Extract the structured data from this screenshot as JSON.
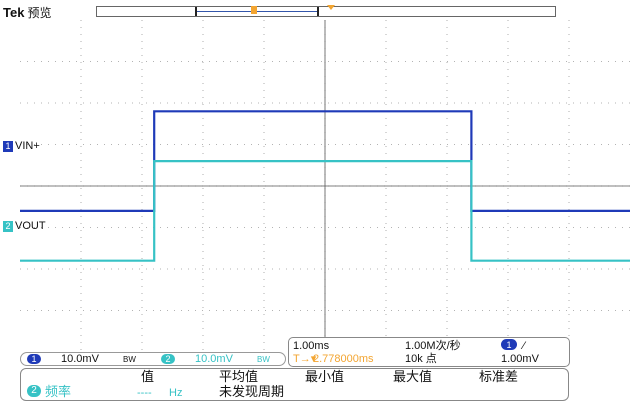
{
  "header": {
    "brand": "Tek",
    "mode": "预览"
  },
  "trigger_marker": "T",
  "channels": [
    {
      "number": "1",
      "name": "VIN+",
      "color": "#1f3ab8"
    },
    {
      "number": "2",
      "name": "VOUT",
      "color": "#36c2c5"
    }
  ],
  "readout": {
    "ch1_num": "1",
    "ch1_scale": "10.0mV",
    "ch1_bw": "BW",
    "ch2_num": "2",
    "ch2_scale": "10.0mV",
    "ch2_bw": "BW"
  },
  "timebase": {
    "scale": "1.00ms",
    "sample_rate": "1.00M次/秒",
    "trig_channel": "1",
    "trig_slope": "⁄",
    "position_icon": "T→▾",
    "position": "2.778000ms",
    "record_length": "10k 点",
    "trigger_level": "1.00mV"
  },
  "measurement": {
    "headers": [
      "值",
      "平均值",
      "最小值",
      "最大值",
      "标准差"
    ],
    "channel": "2",
    "type": "频率",
    "value": "----",
    "unit": "Hz",
    "status": "未发现周期"
  },
  "chart_data": {
    "type": "line",
    "xlabel": "",
    "ylabel": "",
    "x_unit": "div",
    "xlim": [
      0,
      10
    ],
    "ylim": [
      -4,
      4
    ],
    "grid": true,
    "series": [
      {
        "name": "VIN+",
        "color": "#1f3ab8",
        "x": [
          0.0,
          2.2,
          2.2,
          7.4,
          7.4,
          10.0
        ],
        "y": [
          -0.6,
          -0.6,
          1.8,
          1.8,
          -0.6,
          -0.6
        ]
      },
      {
        "name": "VOUT",
        "color": "#36c2c5",
        "x": [
          0.0,
          2.2,
          2.2,
          7.4,
          7.4,
          10.0
        ],
        "y": [
          -1.8,
          -1.8,
          0.6,
          0.6,
          -1.8,
          -1.8
        ]
      }
    ]
  }
}
